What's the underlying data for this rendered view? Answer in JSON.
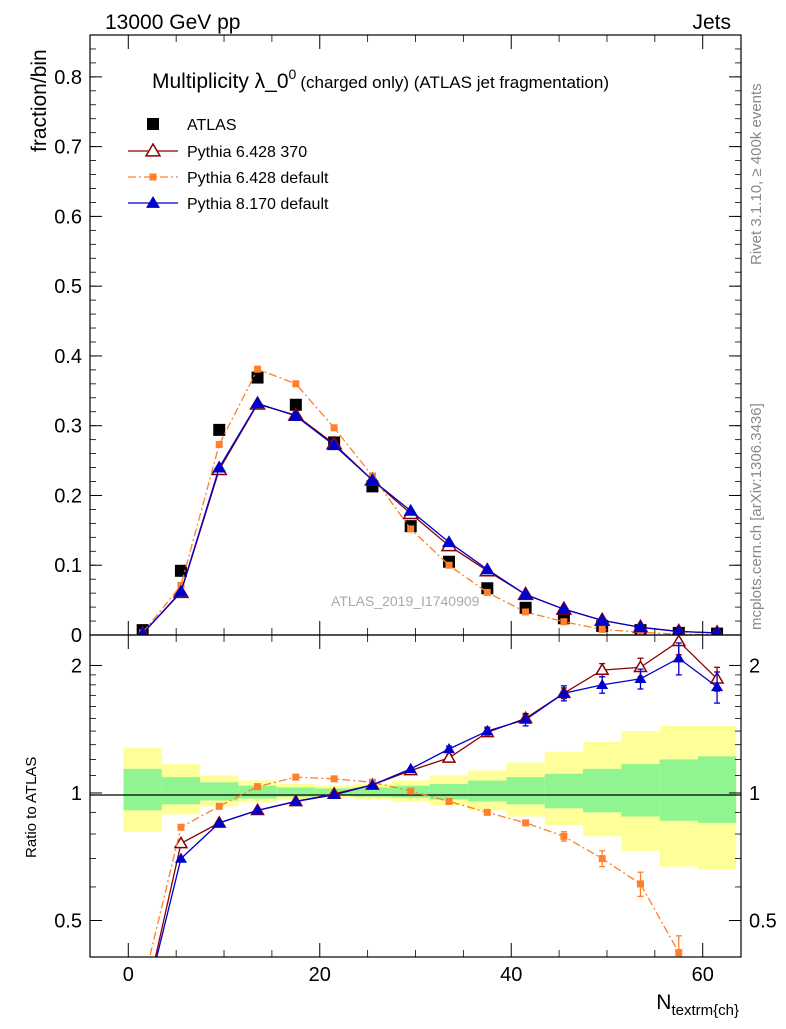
{
  "header": {
    "energy_label": "13000 GeV pp",
    "process_label": "Jets"
  },
  "side_labels": {
    "rivet": "Rivet 3.1.10, ≥ 400k events",
    "mcplots": "mcplots.cern.ch [arXiv:1306.3436]"
  },
  "watermark": "ATLAS_2019_I1740909",
  "chart_data": [
    {
      "type": "scatter",
      "panel": "main",
      "title_main": "Multiplicity λ_0",
      "title_sup": "0",
      "title_tail": "(charged only) (ATLAS jet fragmentation)",
      "ylabel": "fraction/bin",
      "xlim": [
        -4,
        64
      ],
      "ylim": [
        0,
        0.86
      ],
      "yticks": [
        0,
        0.1,
        0.2,
        0.3,
        0.4,
        0.5,
        0.6,
        0.7,
        0.8
      ],
      "ytick_labels": [
        "0",
        "0.1",
        "0.2",
        "0.3",
        "0.4",
        "0.5",
        "0.6",
        "0.7",
        "0.8"
      ],
      "legend_position": "top-left",
      "x": [
        1.5,
        5.5,
        9.5,
        13.5,
        17.5,
        21.5,
        25.5,
        29.5,
        33.5,
        37.5,
        41.5,
        45.5,
        49.5,
        53.5,
        57.5,
        61.5
      ],
      "series": [
        {
          "name": "ATLAS",
          "color": "#000000",
          "marker": "square",
          "values": [
            0.007,
            0.092,
            0.294,
            0.369,
            0.33,
            0.276,
            0.213,
            0.156,
            0.105,
            0.067,
            0.039,
            0.024,
            0.013,
            0.007,
            0.003,
            0.002
          ]
        },
        {
          "name": "Pythia 6.428 370",
          "color": "#8b0000",
          "marker": "open-triangle",
          "line": "solid",
          "values": [
            0.002,
            0.061,
            0.237,
            0.331,
            0.315,
            0.274,
            0.222,
            0.174,
            0.128,
            0.092,
            0.058,
            0.037,
            0.021,
            0.011,
            0.005,
            0.003
          ]
        },
        {
          "name": "Pythia 6.428 default",
          "color": "#ff7f2a",
          "marker": "small-square",
          "line": "dashdot",
          "values": [
            0.003,
            0.071,
            0.273,
            0.381,
            0.36,
            0.297,
            0.228,
            0.152,
            0.1,
            0.061,
            0.033,
            0.019,
            0.008,
            0.004,
            0.001,
            0.0005
          ]
        },
        {
          "name": "Pythia 8.170 default",
          "color": "#0000cc",
          "marker": "filled-triangle",
          "line": "solid",
          "values": [
            0.002,
            0.062,
            0.24,
            0.332,
            0.314,
            0.272,
            0.222,
            0.178,
            0.133,
            0.094,
            0.058,
            0.037,
            0.021,
            0.011,
            0.005,
            0.003
          ]
        }
      ]
    },
    {
      "type": "line",
      "panel": "ratio",
      "ylabel": "Ratio to ATLAS",
      "xlabel_main": "N",
      "xlabel_sub": "textrm{ch}",
      "xlim": [
        -4,
        64
      ],
      "ylim": [
        0.41,
        2.36
      ],
      "log_y": true,
      "xticks": [
        0,
        20,
        40,
        60
      ],
      "xtick_labels": [
        "0",
        "20",
        "40",
        "60"
      ],
      "yticks": [
        0.5,
        1,
        2
      ],
      "ytick_labels": [
        "0.5",
        "1",
        "2"
      ],
      "bin_edges": [
        -0.5,
        3.5,
        7.5,
        11.5,
        15.5,
        19.5,
        23.5,
        27.5,
        31.5,
        35.5,
        39.5,
        43.5,
        47.5,
        51.5,
        55.5,
        59.5,
        63.5
      ],
      "band_inner": {
        "color": "#90f590",
        "lo": [
          0.91,
          0.94,
          0.96,
          0.97,
          0.98,
          0.985,
          0.98,
          0.975,
          0.965,
          0.955,
          0.94,
          0.92,
          0.9,
          0.88,
          0.86,
          0.85
        ],
        "hi": [
          1.14,
          1.09,
          1.06,
          1.04,
          1.03,
          1.025,
          1.03,
          1.04,
          1.05,
          1.07,
          1.09,
          1.11,
          1.14,
          1.17,
          1.2,
          1.22
        ]
      },
      "band_outer": {
        "color": "#ffff99",
        "lo": [
          0.81,
          0.89,
          0.93,
          0.95,
          0.965,
          0.975,
          0.965,
          0.955,
          0.935,
          0.91,
          0.88,
          0.84,
          0.79,
          0.73,
          0.67,
          0.66
        ],
        "hi": [
          1.28,
          1.17,
          1.1,
          1.07,
          1.05,
          1.04,
          1.05,
          1.07,
          1.1,
          1.13,
          1.18,
          1.25,
          1.32,
          1.4,
          1.44,
          1.44
        ]
      },
      "series": [
        {
          "name": "Pythia 6.428 370",
          "color": "#8b0000",
          "marker": "open-triangle",
          "values": [
            0.3,
            0.76,
            0.85,
            0.91,
            0.955,
            0.995,
            1.045,
            1.13,
            1.21,
            1.39,
            1.5,
            1.72,
            1.95,
            1.98,
            2.28,
            1.86
          ],
          "errors": [
            0,
            0,
            0,
            0,
            0,
            0,
            0,
            0,
            0.02,
            0.03,
            0.03,
            0.05,
            0.07,
            0.1,
            0.16,
            0.12
          ]
        },
        {
          "name": "Pythia 6.428 default",
          "color": "#ff7f2a",
          "marker": "small-square",
          "values": [
            0.35,
            0.83,
            0.93,
            1.035,
            1.09,
            1.08,
            1.06,
            1.01,
            0.955,
            0.9,
            0.85,
            0.79,
            0.7,
            0.61,
            0.42,
            0.28
          ],
          "errors": [
            0,
            0,
            0,
            0,
            0,
            0,
            0,
            0,
            0.01,
            0.01,
            0.01,
            0.02,
            0.03,
            0.04,
            0.04,
            0
          ]
        },
        {
          "name": "Pythia 8.170 default",
          "color": "#0000cc",
          "marker": "filled-triangle",
          "values": [
            0.3,
            0.7,
            0.85,
            0.91,
            0.955,
            0.99,
            1.045,
            1.14,
            1.27,
            1.4,
            1.49,
            1.72,
            1.8,
            1.86,
            2.08,
            1.78
          ],
          "errors": [
            0,
            0,
            0,
            0,
            0,
            0,
            0,
            0,
            0.02,
            0.03,
            0.05,
            0.07,
            0.08,
            0.1,
            0.18,
            0.15
          ]
        }
      ]
    }
  ]
}
